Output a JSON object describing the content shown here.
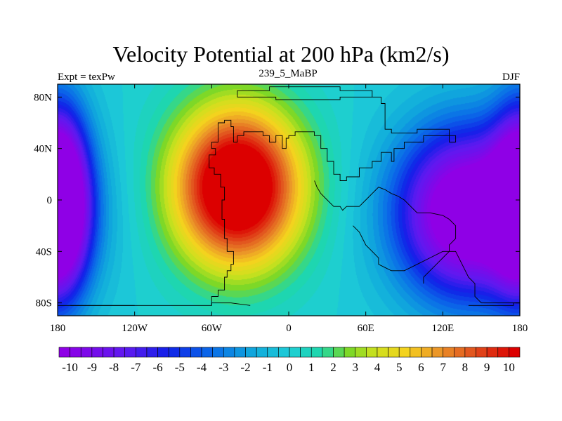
{
  "chart_data": {
    "type": "heatmap",
    "title": "Velocity Potential at 200 hPa (km2/s)",
    "subtitle_left": "Expt = texPw",
    "subtitle_center": "239_5_MaBP",
    "subtitle_right": "DJF",
    "xlim": [
      -180,
      180
    ],
    "ylim": [
      -90,
      90
    ],
    "x_ticks": [
      {
        "value": -180,
        "label": "180"
      },
      {
        "value": -120,
        "label": "120W"
      },
      {
        "value": -60,
        "label": "60W"
      },
      {
        "value": 0,
        "label": "0"
      },
      {
        "value": 60,
        "label": "60E"
      },
      {
        "value": 120,
        "label": "120E"
      },
      {
        "value": 180,
        "label": "180"
      }
    ],
    "y_ticks": [
      {
        "value": 80,
        "label": "80N"
      },
      {
        "value": 40,
        "label": "40N"
      },
      {
        "value": 0,
        "label": "0"
      },
      {
        "value": -40,
        "label": "40S"
      },
      {
        "value": -80,
        "label": "80S"
      }
    ],
    "colorbar": {
      "min": -10.5,
      "max": 10.5,
      "step": 0.5,
      "label_values": [
        -10,
        -9,
        -8,
        -7,
        -6,
        -5,
        -4,
        -3,
        -2,
        -1,
        0,
        1,
        2,
        3,
        4,
        5,
        6,
        7,
        8,
        9,
        10
      ],
      "labels": [
        "-10",
        "-9",
        "-8",
        "-7",
        "-6",
        "-5",
        "-4",
        "-3",
        "-2",
        "-1",
        "0",
        "1",
        "2",
        "3",
        "4",
        "5",
        "6",
        "7",
        "8",
        "9",
        "10"
      ]
    },
    "field_centers": [
      {
        "name": "velocity-potential-maximum",
        "lon": -40,
        "lat": 10,
        "value": 10.5
      },
      {
        "name": "velocity-potential-minimum-east",
        "lon": 140,
        "lat": -10,
        "value": -10.5
      },
      {
        "name": "velocity-potential-minimum-west",
        "lon": -178,
        "lat": 0,
        "value": -10
      }
    ],
    "coastline_lonlat": [
      [
        [
          -180,
          -82
        ],
        [
          -60,
          -82
        ],
        [
          -60,
          -75
        ],
        [
          -55,
          -75
        ],
        [
          -55,
          -70
        ],
        [
          -50,
          -70
        ],
        [
          -50,
          -60
        ],
        [
          -48,
          -60
        ],
        [
          -48,
          -55
        ],
        [
          -45,
          -55
        ],
        [
          -45,
          -50
        ],
        [
          -43,
          -50
        ],
        [
          -43,
          -40
        ],
        [
          -48,
          -40
        ],
        [
          -48,
          -30
        ],
        [
          -50,
          -30
        ],
        [
          -50,
          -15
        ],
        [
          -52,
          -15
        ],
        [
          -52,
          0
        ],
        [
          -50,
          0
        ],
        [
          -50,
          10
        ],
        [
          -53,
          10
        ],
        [
          -53,
          20
        ],
        [
          -58,
          20
        ],
        [
          -58,
          25
        ],
        [
          -62,
          25
        ],
        [
          -62,
          35
        ],
        [
          -57,
          35
        ],
        [
          -57,
          40
        ],
        [
          -60,
          40
        ],
        [
          -60,
          45
        ],
        [
          -55,
          45
        ],
        [
          -55,
          60
        ],
        [
          -50,
          60
        ],
        [
          -50,
          62
        ],
        [
          -45,
          62
        ],
        [
          -45,
          57
        ],
        [
          -43,
          57
        ],
        [
          -43,
          45
        ],
        [
          -40,
          45
        ],
        [
          -40,
          50
        ],
        [
          -35,
          50
        ],
        [
          -35,
          53
        ],
        [
          -20,
          53
        ],
        [
          -20,
          50
        ],
        [
          -15,
          50
        ],
        [
          -15,
          45
        ],
        [
          -10,
          45
        ],
        [
          -10,
          50
        ],
        [
          -5,
          50
        ],
        [
          -5,
          40
        ],
        [
          -2,
          40
        ],
        [
          -2,
          48
        ],
        [
          0,
          48
        ],
        [
          0,
          50
        ],
        [
          5,
          50
        ],
        [
          5,
          53
        ],
        [
          20,
          53
        ],
        [
          20,
          50
        ],
        [
          25,
          50
        ],
        [
          25,
          40
        ],
        [
          30,
          40
        ],
        [
          30,
          30
        ],
        [
          35,
          30
        ],
        [
          35,
          20
        ],
        [
          40,
          20
        ],
        [
          40,
          15
        ],
        [
          45,
          15
        ],
        [
          45,
          18
        ],
        [
          55,
          18
        ],
        [
          55,
          25
        ],
        [
          65,
          25
        ],
        [
          65,
          30
        ],
        [
          72,
          30
        ],
        [
          72,
          37
        ],
        [
          80,
          37
        ],
        [
          80,
          30
        ],
        [
          82,
          30
        ],
        [
          82,
          40
        ],
        [
          90,
          40
        ],
        [
          90,
          45
        ],
        [
          105,
          45
        ],
        [
          105,
          50
        ],
        [
          125,
          50
        ],
        [
          125,
          45
        ],
        [
          130,
          45
        ],
        [
          130,
          50
        ],
        [
          125,
          50
        ],
        [
          125,
          55
        ],
        [
          100,
          55
        ],
        [
          100,
          52
        ],
        [
          80,
          52
        ],
        [
          80,
          55
        ],
        [
          75,
          55
        ],
        [
          75,
          75
        ],
        [
          72,
          75
        ],
        [
          72,
          80
        ],
        [
          40,
          80
        ],
        [
          40,
          78
        ],
        [
          -10,
          78
        ],
        [
          -10,
          80
        ],
        [
          -40,
          80
        ],
        [
          -40,
          85
        ],
        [
          -15,
          85
        ],
        [
          -15,
          88
        ],
        [
          40,
          88
        ],
        [
          40,
          85
        ],
        [
          65,
          85
        ],
        [
          65,
          80
        ],
        [
          72,
          80
        ]
      ],
      [
        [
          -60,
          -82
        ],
        [
          -60,
          -80
        ],
        [
          -55,
          -80
        ],
        [
          -45,
          -80
        ],
        [
          -30,
          -82
        ]
      ],
      [
        [
          20,
          15
        ],
        [
          22,
          10
        ],
        [
          25,
          5
        ],
        [
          30,
          0
        ],
        [
          35,
          -5
        ],
        [
          40,
          -5
        ],
        [
          42,
          -8
        ],
        [
          45,
          -5
        ],
        [
          55,
          -5
        ],
        [
          60,
          0
        ],
        [
          65,
          5
        ],
        [
          70,
          10
        ],
        [
          75,
          8
        ],
        [
          80,
          5
        ],
        [
          85,
          3
        ],
        [
          90,
          0
        ],
        [
          95,
          -5
        ],
        [
          100,
          -10
        ],
        [
          110,
          -10
        ],
        [
          120,
          -12
        ],
        [
          125,
          -15
        ],
        [
          130,
          -20
        ],
        [
          130,
          -30
        ],
        [
          125,
          -35
        ],
        [
          125,
          -40
        ],
        [
          120,
          -45
        ],
        [
          115,
          -50
        ],
        [
          110,
          -55
        ],
        [
          105,
          -60
        ],
        [
          105,
          -65
        ]
      ],
      [
        [
          50,
          -20
        ],
        [
          55,
          -25
        ],
        [
          60,
          -35
        ],
        [
          65,
          -40
        ],
        [
          70,
          -45
        ],
        [
          70,
          -50
        ],
        [
          80,
          -55
        ],
        [
          90,
          -55
        ],
        [
          100,
          -50
        ],
        [
          110,
          -45
        ],
        [
          120,
          -40
        ],
        [
          130,
          -40
        ],
        [
          135,
          -50
        ],
        [
          140,
          -60
        ],
        [
          145,
          -65
        ],
        [
          145,
          -75
        ],
        [
          150,
          -80
        ],
        [
          180,
          -80
        ]
      ],
      [
        [
          -170,
          -82
        ],
        [
          -120,
          -82
        ]
      ],
      [
        [
          140,
          -82
        ],
        [
          175,
          -82
        ],
        [
          175,
          -80
        ],
        [
          180,
          -80
        ]
      ]
    ]
  }
}
